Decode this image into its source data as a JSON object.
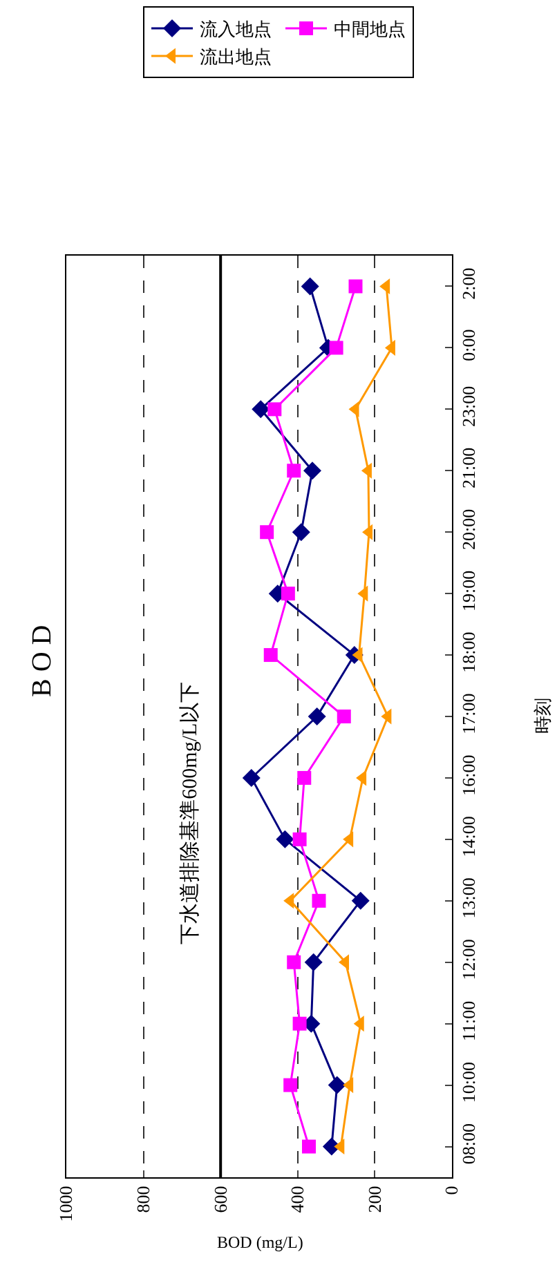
{
  "chart_data": {
    "type": "line",
    "orientation": "horizontal",
    "title": "B O D",
    "xlabel": "BOD (mg/L)",
    "ylabel": "時刻",
    "categories": [
      "2:00",
      "0:00",
      "23:00",
      "21:00",
      "20:00",
      "19:00",
      "18:00",
      "17:00",
      "16:00",
      "14:00",
      "13:00",
      "12:00",
      "11:00",
      "10:00",
      "08:00"
    ],
    "series": [
      {
        "name": "流入地点",
        "color": "#000080",
        "marker": "diamond",
        "values": [
          368,
          321,
          496,
          362,
          391,
          452,
          253,
          350,
          520,
          433,
          237,
          359,
          365,
          298,
          312
        ]
      },
      {
        "name": "中間地点",
        "color": "#ff00ff",
        "marker": "square",
        "values": [
          250,
          300,
          460,
          410,
          480,
          425,
          470,
          280,
          383,
          395,
          345,
          410,
          395,
          419,
          371
        ]
      },
      {
        "name": "流出地点",
        "color": "#ff9900",
        "marker": "triangle",
        "values": [
          170,
          156,
          250,
          217,
          215,
          227,
          241,
          166,
          231,
          265,
          419,
          276,
          237,
          265,
          288
        ]
      }
    ],
    "xlim": [
      1000,
      0
    ],
    "xticks": [
      0,
      200,
      400,
      600,
      800,
      1000
    ],
    "grid": "x",
    "legend": "top",
    "ref_lines": [
      {
        "axis": "x",
        "value": 600,
        "label": "下水道排除基準600mg/L以下",
        "color": "#000000",
        "line_style": "solid"
      }
    ]
  }
}
